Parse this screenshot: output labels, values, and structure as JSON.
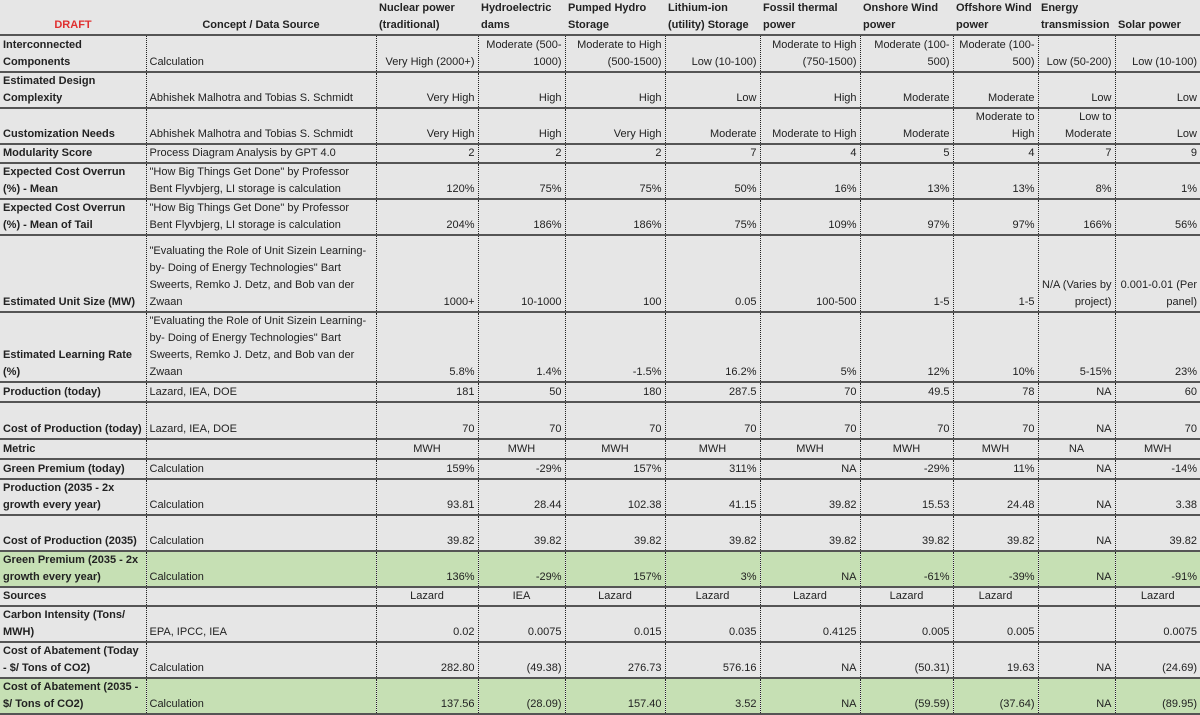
{
  "header": {
    "draft_label": "DRAFT",
    "source_label": "Concept / Data Source",
    "columns": [
      "Nuclear power (traditional)",
      "Hydroelectric dams",
      "Pumped Hydro Storage",
      "Lithium-ion (utility) Storage",
      "Fossil thermal power",
      "Onshore Wind power",
      "Offshore Wind power",
      "Energy transmission",
      "Solar power"
    ]
  },
  "colors": {
    "draft": "#e03030",
    "highlight": "#c6e0b4",
    "background": "#e6e6e6"
  },
  "rows": [
    {
      "label": "Interconnected Components",
      "source": "Calculation",
      "values": [
        "Very High (2000+)",
        "Moderate (500-1000)",
        "Moderate to High (500-1500)",
        "Low (10-100)",
        "Moderate to High (750-1500)",
        "Moderate (100-500)",
        "Moderate (100-500)",
        "Low (50-200)",
        "Low (10-100)"
      ]
    },
    {
      "label": "Estimated Design Complexity",
      "source": "Abhishek Malhotra and Tobias S. Schmidt",
      "values": [
        "Very High",
        "High",
        "High",
        "Low",
        "High",
        "Moderate",
        "Moderate",
        "Low",
        "Low"
      ]
    },
    {
      "label": "Customization Needs",
      "source": "Abhishek Malhotra and Tobias S. Schmidt",
      "values": [
        "Very High",
        "High",
        "Very High",
        "Moderate",
        "Moderate to High",
        "Moderate",
        "Moderate to High",
        "Low to Moderate",
        "Low"
      ]
    },
    {
      "label": "Modularity Score",
      "source": "Process Diagram Analysis by GPT 4.0",
      "values": [
        "2",
        "2",
        "2",
        "7",
        "4",
        "5",
        "4",
        "7",
        "9"
      ]
    },
    {
      "label": "Expected Cost Overrun (%) - Mean",
      "source": "\"How Big Things Get Done\" by Professor Bent Flyvbjerg, LI storage is calculation",
      "values": [
        "120%",
        "75%",
        "75%",
        "50%",
        "16%",
        "13%",
        "13%",
        "8%",
        "1%"
      ]
    },
    {
      "label": "Expected Cost Overrun (%) - Mean of Tail",
      "source": "\"How Big Things Get Done\" by Professor Bent Flyvbjerg, LI storage is calculation",
      "values": [
        "204%",
        "186%",
        "186%",
        "75%",
        "109%",
        "97%",
        "97%",
        "166%",
        "56%"
      ]
    },
    {
      "label": "Estimated Unit Size (MW)",
      "source": "\"Evaluating the Role of Unit Sizein Learning-by- Doing of Energy Technologies\" Bart Sweerts, Remko J. Detz, and Bob van der Zwaan",
      "values": [
        "1000+",
        "10-1000",
        "100",
        "0.05",
        "100-500",
        "1-5",
        "1-5",
        "N/A (Varies by project)",
        "0.001-0.01 (Per panel)"
      ]
    },
    {
      "label": "Estimated Learning Rate (%)",
      "source": "\"Evaluating the Role of Unit Sizein Learning-by- Doing of Energy Technologies\" Bart Sweerts, Remko J. Detz, and Bob van der Zwaan",
      "values": [
        "5.8%",
        "1.4%",
        "-1.5%",
        "16.2%",
        "5%",
        "12%",
        "10%",
        "5-15%",
        "23%"
      ]
    },
    {
      "label": "Production (today)",
      "source": "Lazard, IEA, DOE",
      "values": [
        "181",
        "50",
        "180",
        "287.5",
        "70",
        "49.5",
        "78",
        "NA",
        "60"
      ]
    },
    {
      "label": "Cost of Production (today)",
      "source": "Lazard, IEA, DOE",
      "values": [
        "70",
        "70",
        "70",
        "70",
        "70",
        "70",
        "70",
        "NA",
        "70"
      ]
    },
    {
      "label": "Metric",
      "source": "",
      "values": [
        "MWH",
        "MWH",
        "MWH",
        "MWH",
        "MWH",
        "MWH",
        "MWH",
        "NA",
        "MWH"
      ]
    },
    {
      "label": "Green Premium (today)",
      "source": "Calculation",
      "values": [
        "159%",
        "-29%",
        "157%",
        "311%",
        "NA",
        "-29%",
        "11%",
        "NA",
        "-14%"
      ]
    },
    {
      "label": "Production (2035 - 2x growth every year)",
      "source": "Calculation",
      "values": [
        "93.81",
        "28.44",
        "102.38",
        "41.15",
        "39.82",
        "15.53",
        "24.48",
        "NA",
        "3.38"
      ]
    },
    {
      "label": "Cost of Production (2035)",
      "source": "Calculation",
      "values": [
        "39.82",
        "39.82",
        "39.82",
        "39.82",
        "39.82",
        "39.82",
        "39.82",
        "NA",
        "39.82"
      ]
    },
    {
      "label": "Green Premium (2035 - 2x growth every year)",
      "source": "Calculation",
      "highlight": true,
      "values": [
        "136%",
        "-29%",
        "157%",
        "3%",
        "NA",
        "-61%",
        "-39%",
        "NA",
        "-91%"
      ]
    },
    {
      "label": "Sources",
      "source": "",
      "values": [
        "Lazard",
        "IEA",
        "Lazard",
        "Lazard",
        "Lazard",
        "Lazard",
        "Lazard",
        "",
        "Lazard"
      ]
    },
    {
      "label": "Carbon Intensity (Tons/ MWH)",
      "source": "EPA, IPCC, IEA",
      "values": [
        "0.02",
        "0.0075",
        "0.015",
        "0.035",
        "0.4125",
        "0.005",
        "0.005",
        "",
        "0.0075"
      ]
    },
    {
      "label": "Cost of Abatement (Today - $/ Tons of CO2)",
      "source": "Calculation",
      "values": [
        "282.80",
        "(49.38)",
        "276.73",
        "576.16",
        "NA",
        "(50.31)",
        "19.63",
        "NA",
        "(24.69)"
      ]
    },
    {
      "label": "Cost of Abatement (2035 - $/ Tons of CO2)",
      "source": "Calculation",
      "highlight": true,
      "values": [
        "137.56",
        "(28.09)",
        "157.40",
        "3.52",
        "NA",
        "(59.59)",
        "(37.64)",
        "NA",
        "(89.95)"
      ]
    }
  ]
}
